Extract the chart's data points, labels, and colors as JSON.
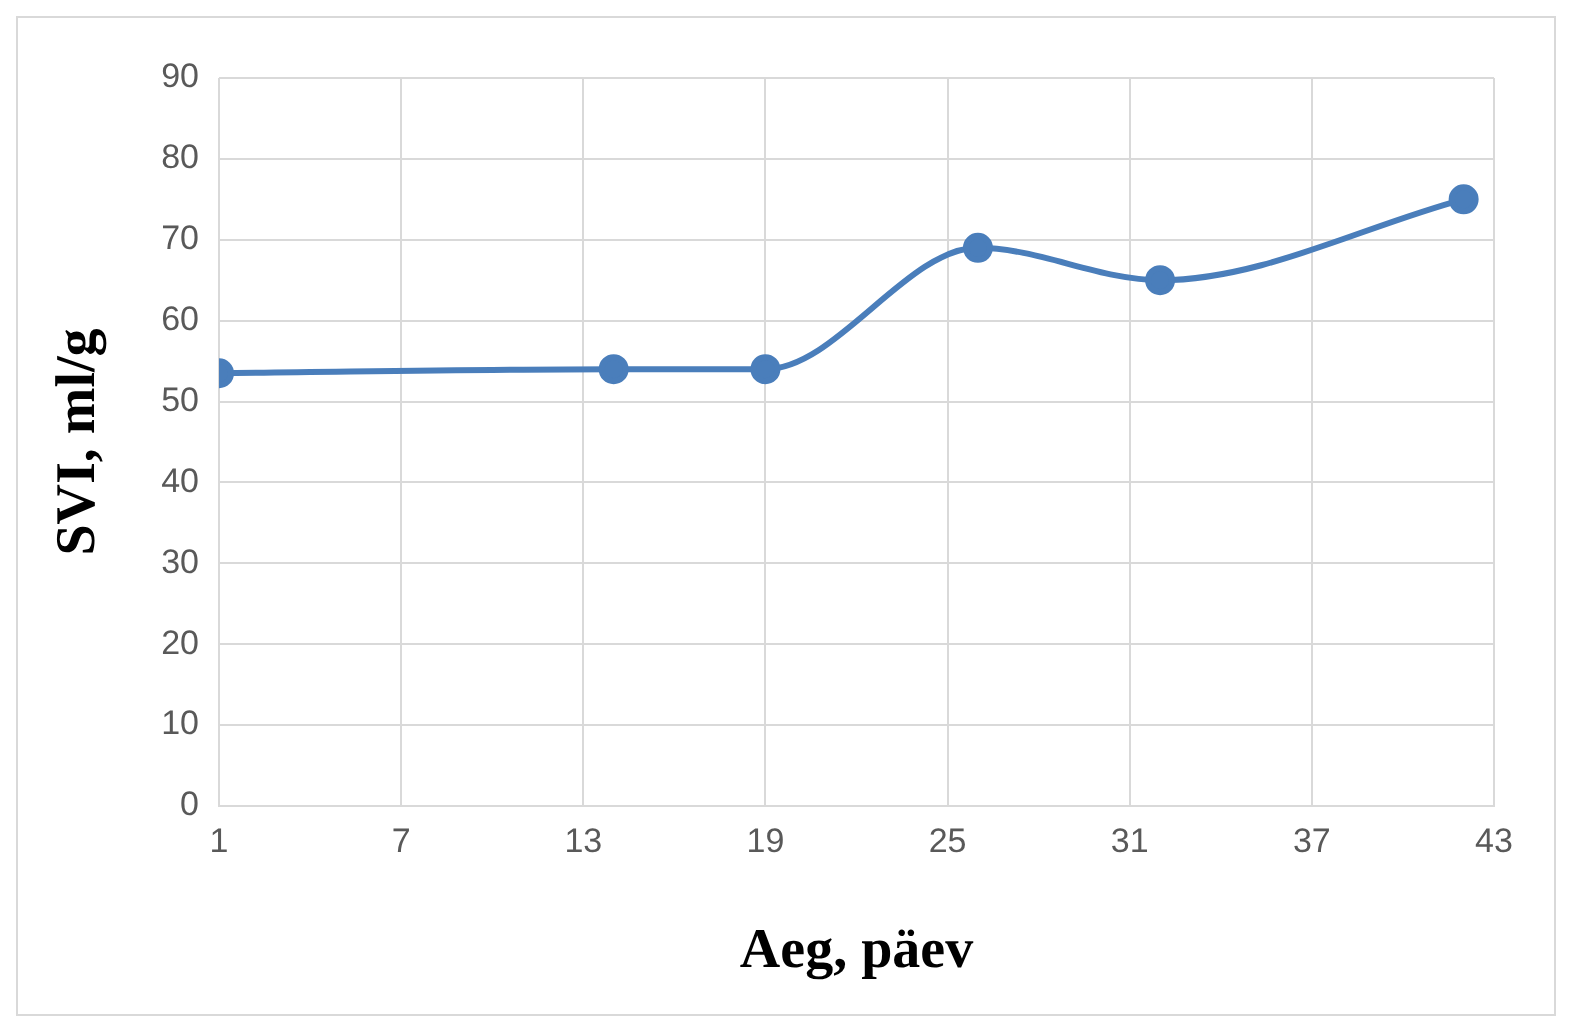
{
  "chart_data": {
    "type": "line",
    "xlabel": "Aeg, päev",
    "ylabel": "SVI, ml/g",
    "x": [
      1,
      14,
      19,
      26,
      32,
      42
    ],
    "series": [
      {
        "color": "#4a7ebb",
        "values": [
          53.5,
          54,
          54,
          69,
          65,
          75
        ]
      }
    ],
    "xlim": [
      1,
      43
    ],
    "xticks": [
      1,
      7,
      13,
      19,
      25,
      31,
      37,
      43
    ],
    "ylim": [
      0,
      90
    ],
    "yticks": [
      0,
      10,
      20,
      30,
      40,
      50,
      60,
      70,
      80,
      90
    ],
    "grid": true,
    "legend": false,
    "marker": "circle",
    "line_style": "solid"
  }
}
